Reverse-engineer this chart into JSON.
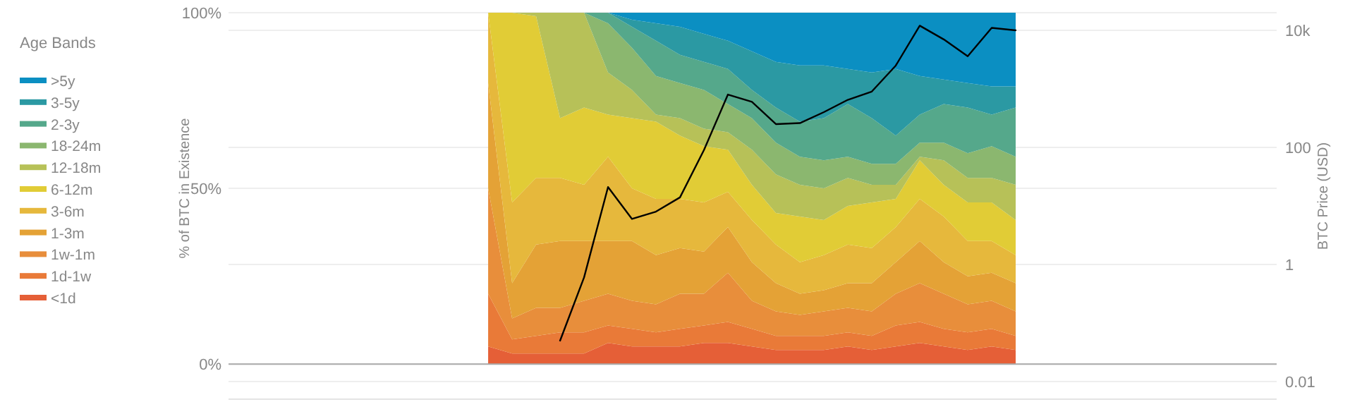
{
  "chart_data": {
    "type": "area",
    "stacked": true,
    "ylabel": "% of BTC in Existence",
    "y2label": "BTC Price (USD)",
    "legend_title": "Age Bands",
    "legend": "left",
    "grid": true,
    "categories": [
      null,
      null,
      null,
      null,
      null,
      null,
      null,
      null,
      null,
      null,
      null,
      null,
      null,
      null,
      null,
      null,
      null,
      null,
      null,
      null,
      null,
      null,
      null
    ],
    "ylim": [
      -10,
      100
    ],
    "yticks": [
      {
        "value": 0,
        "label": "0%"
      },
      {
        "value": 50,
        "label": "50%"
      },
      {
        "value": 100,
        "label": "100%"
      }
    ],
    "y2lim": [
      0.005,
      20000
    ],
    "log": "y2",
    "y2ticks": [
      0.01,
      1,
      100,
      {
        "value": 10000,
        "label": "10k"
      }
    ],
    "series": [
      {
        "name": "<1d",
        "color": "#e55f37",
        "values": [
          5,
          3,
          3,
          3,
          3,
          6,
          5,
          5,
          5,
          6,
          6,
          5,
          4,
          4,
          4,
          5,
          4,
          5,
          6,
          5,
          4,
          5,
          4
        ]
      },
      {
        "name": "1d-1w",
        "color": "#e97a38",
        "values": [
          15,
          4,
          5,
          6,
          6,
          5,
          5,
          4,
          5,
          5,
          6,
          5,
          4,
          4,
          4,
          4,
          4,
          6,
          6,
          5,
          5,
          5,
          4
        ]
      },
      {
        "name": "1w-1m",
        "color": "#e88e3b",
        "values": [
          30,
          6,
          8,
          7,
          9,
          9,
          8,
          8,
          10,
          9,
          14,
          8,
          7,
          6,
          7,
          7,
          7,
          9,
          11,
          10,
          8,
          8,
          7
        ]
      },
      {
        "name": "1-3m",
        "color": "#e4a236",
        "values": [
          30,
          10,
          18,
          19,
          17,
          15,
          17,
          14,
          13,
          12,
          13,
          11,
          8,
          6,
          6,
          7,
          8,
          9,
          12,
          9,
          8,
          8,
          8
        ]
      },
      {
        "name": "3-6m",
        "color": "#e6b83c",
        "values": [
          20,
          23,
          19,
          18,
          16,
          24,
          15,
          16,
          14,
          14,
          10,
          12,
          11,
          9,
          10,
          11,
          10,
          10,
          12,
          13,
          10,
          9,
          8
        ]
      },
      {
        "name": "6-12m",
        "color": "#e1cc36",
        "values": [
          0,
          54,
          46,
          17,
          22,
          12,
          20,
          22,
          18,
          16,
          12,
          10,
          9,
          13,
          10,
          11,
          13,
          8,
          11,
          9,
          11,
          11,
          10
        ]
      },
      {
        "name": "12-18m",
        "color": "#b7c158",
        "values": [
          0,
          0,
          1,
          30,
          27,
          12,
          8,
          2,
          5,
          5,
          5,
          10,
          11,
          9,
          9,
          8,
          5,
          4,
          1,
          7,
          7,
          7,
          10
        ]
      },
      {
        "name": "18-24m",
        "color": "#8bb76f",
        "values": [
          0,
          0,
          0,
          0,
          0,
          14,
          12,
          11,
          10,
          11,
          8,
          9,
          9,
          8,
          8,
          6,
          6,
          6,
          4,
          5,
          7,
          9,
          8
        ]
      },
      {
        "name": "2-3y",
        "color": "#55a88b",
        "values": [
          0,
          0,
          0,
          0,
          0,
          3,
          6,
          10,
          8,
          8,
          10,
          8,
          10,
          10,
          12,
          15,
          13,
          8,
          8,
          11,
          13,
          9,
          14
        ]
      },
      {
        "name": "3-5y",
        "color": "#2b99a3",
        "values": [
          0,
          0,
          0,
          0,
          0,
          0,
          2,
          5,
          8,
          8,
          8,
          11,
          13,
          16,
          15,
          10,
          13,
          19,
          11,
          7,
          7,
          8,
          6
        ]
      },
      {
        "name": ">5y",
        "color": "#0b8fc2",
        "values": [
          0,
          0,
          0,
          0,
          0,
          0,
          2,
          3,
          4,
          6,
          8,
          11,
          14,
          15,
          15,
          16,
          17,
          16,
          18,
          19,
          20,
          21,
          21
        ]
      },
      {
        "type": "line",
        "axis": "y2",
        "color": "#000000",
        "values": [
          null,
          null,
          null,
          0.05,
          0.6,
          21,
          6,
          8,
          14,
          90,
          800,
          600,
          250,
          260,
          400,
          650,
          900,
          2500,
          12000,
          7000,
          3600,
          11000,
          10000
        ]
      }
    ]
  }
}
